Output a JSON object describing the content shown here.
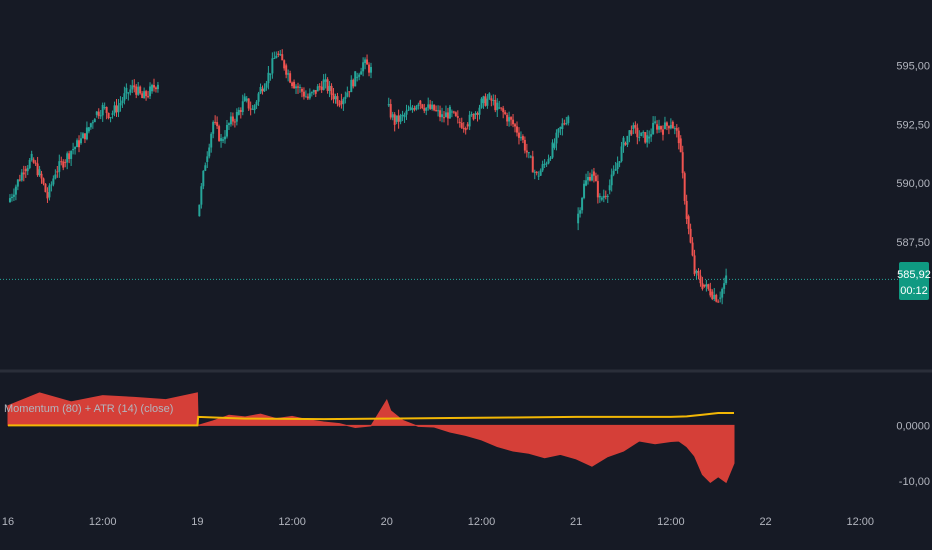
{
  "colors": {
    "background": "#161a25",
    "up": "#26a69a",
    "down": "#ef5350",
    "momentum_fill": "#e0413a",
    "atr_line": "#f2b705",
    "price_line": "#26a69a",
    "price_tag_bg": "#0f9a82",
    "separator": "#2a2e39",
    "axis_text": "#b2b5be"
  },
  "chart_data": [
    {
      "type": "candlestick",
      "title": "",
      "y_ticks": [
        "595,00",
        "592,50",
        "590,00",
        "587,50"
      ],
      "ylim": [
        582.5,
        596.5
      ],
      "x_ticks": [
        "16",
        "12:00",
        "19",
        "12:00",
        "20",
        "12:00",
        "21",
        "12:00",
        "22",
        "12:00"
      ],
      "last_price": "585,92",
      "countdown": "00:12",
      "series": [
        {
          "segment": "day-16",
          "x": [
            0,
            24
          ],
          "close_path": [
            [
              0,
              589.2
            ],
            [
              2,
              590.6
            ],
            [
              3,
              591.0
            ],
            [
              4,
              590.4
            ],
            [
              5,
              589.4
            ],
            [
              6,
              590.5
            ],
            [
              7,
              590.9
            ],
            [
              8,
              591.4
            ],
            [
              9,
              591.7
            ],
            [
              10,
              592.2
            ],
            [
              11,
              592.9
            ],
            [
              12,
              593.2
            ],
            [
              13,
              592.9
            ],
            [
              14,
              593.3
            ],
            [
              15,
              593.8
            ],
            [
              16,
              594.1
            ],
            [
              17,
              593.6
            ],
            [
              18,
              593.9
            ],
            [
              19,
              594.3
            ]
          ]
        },
        {
          "segment": "day-19",
          "x": [
            24,
            48
          ],
          "close_path": [
            [
              24,
              588.6
            ],
            [
              25,
              590.9
            ],
            [
              26,
              592.6
            ],
            [
              27,
              591.8
            ],
            [
              28,
              592.5
            ],
            [
              29,
              592.9
            ],
            [
              30,
              593.5
            ],
            [
              31,
              593.1
            ],
            [
              32,
              594.0
            ],
            [
              33,
              594.6
            ],
            [
              34,
              595.5
            ],
            [
              35,
              595.0
            ],
            [
              36,
              594.3
            ],
            [
              37,
              594.0
            ],
            [
              38,
              593.6
            ],
            [
              39,
              593.9
            ],
            [
              40,
              594.3
            ],
            [
              41,
              593.8
            ],
            [
              42,
              593.5
            ],
            [
              43,
              593.9
            ],
            [
              44,
              594.5
            ],
            [
              45,
              595.1
            ],
            [
              46,
              594.8
            ]
          ]
        },
        {
          "segment": "day-20",
          "x": [
            48,
            72
          ],
          "close_path": [
            [
              48,
              593.3
            ],
            [
              49,
              592.6
            ],
            [
              50,
              592.8
            ],
            [
              51,
              593.1
            ],
            [
              52,
              593.5
            ],
            [
              53,
              593.2
            ],
            [
              54,
              593.1
            ],
            [
              55,
              592.8
            ],
            [
              56,
              593.0
            ],
            [
              57,
              592.6
            ],
            [
              58,
              592.5
            ],
            [
              59,
              592.9
            ],
            [
              60,
              593.4
            ],
            [
              61,
              593.6
            ],
            [
              62,
              593.2
            ],
            [
              63,
              592.9
            ],
            [
              64,
              592.5
            ],
            [
              65,
              592.0
            ],
            [
              66,
              591.1
            ],
            [
              67,
              590.3
            ],
            [
              68,
              590.8
            ],
            [
              69,
              591.5
            ],
            [
              70,
              592.3
            ],
            [
              71,
              592.9
            ]
          ]
        },
        {
          "segment": "day-21",
          "x": [
            72,
            92
          ],
          "close_path": [
            [
              72,
              588.3
            ],
            [
              73,
              589.9
            ],
            [
              74,
              590.5
            ],
            [
              75,
              589.3
            ],
            [
              76,
              589.7
            ],
            [
              77,
              590.6
            ],
            [
              78,
              591.7
            ],
            [
              79,
              592.3
            ],
            [
              80,
              592.0
            ],
            [
              81,
              591.9
            ],
            [
              82,
              592.5
            ],
            [
              83,
              592.3
            ],
            [
              84,
              592.6
            ],
            [
              85,
              591.9
            ],
            [
              86,
              588.6
            ],
            [
              87,
              586.2
            ],
            [
              88,
              585.7
            ],
            [
              89,
              585.4
            ],
            [
              90,
              585.1
            ],
            [
              91,
              585.92
            ]
          ]
        }
      ]
    },
    {
      "type": "area",
      "title": "Momentum (80) + ATR (14) (close)",
      "y_ticks": [
        "0,0000",
        "-10,00"
      ],
      "ylim": [
        -13,
        9
      ],
      "series": [
        {
          "name": "Momentum",
          "x": [
            0,
            4,
            8,
            12,
            16,
            20,
            24,
            24.1,
            26,
            28,
            30,
            32,
            34,
            36,
            38,
            40,
            42,
            44,
            46,
            48,
            48.5,
            50,
            52,
            54,
            56,
            58,
            60,
            62,
            64,
            66,
            68,
            70,
            72,
            74,
            76,
            78,
            80,
            82,
            84,
            85,
            86,
            87,
            88,
            89,
            90,
            91,
            92
          ],
          "values": [
            3.5,
            5.8,
            4.2,
            5.3,
            5.0,
            4.6,
            5.8,
            0.0,
            0.8,
            1.8,
            1.5,
            2.0,
            1.2,
            1.6,
            1.0,
            0.6,
            0.3,
            -0.4,
            -0.1,
            4.5,
            2.6,
            0.9,
            -0.2,
            -0.3,
            -1.2,
            -1.8,
            -2.6,
            -3.8,
            -4.6,
            -5.0,
            -5.8,
            -5.2,
            -6.0,
            -7.3,
            -5.6,
            -4.6,
            -2.8,
            -3.3,
            -2.9,
            -2.8,
            -3.8,
            -5.5,
            -8.8,
            -10.2,
            -9.2,
            -10.2,
            -6.8
          ]
        },
        {
          "name": "ATR",
          "x": [
            0,
            24,
            24.1,
            30,
            40,
            48,
            56,
            64,
            72,
            80,
            84,
            86,
            88,
            90,
            92
          ],
          "values": [
            0.0,
            0.0,
            1.5,
            1.2,
            1.1,
            1.2,
            1.3,
            1.4,
            1.5,
            1.5,
            1.5,
            1.6,
            1.9,
            2.2,
            2.2
          ]
        }
      ]
    }
  ]
}
